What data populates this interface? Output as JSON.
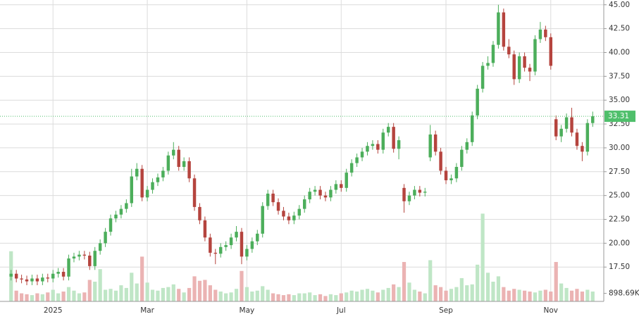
{
  "chart_data": {
    "type": "candlestick",
    "categories": [
      null,
      null,
      null,
      null,
      null,
      null,
      null,
      null,
      "2025",
      null,
      null,
      null,
      null,
      null,
      null,
      null,
      null,
      null,
      null,
      null,
      null,
      null,
      null,
      null,
      null,
      null,
      "Mar",
      null,
      null,
      null,
      null,
      null,
      null,
      null,
      null,
      null,
      null,
      null,
      null,
      null,
      null,
      null,
      null,
      null,
      null,
      "May",
      null,
      null,
      null,
      null,
      null,
      null,
      null,
      null,
      null,
      null,
      null,
      null,
      null,
      null,
      null,
      null,
      null,
      "Jul",
      null,
      null,
      null,
      null,
      null,
      null,
      null,
      null,
      null,
      null,
      null,
      null,
      null,
      null,
      null,
      null,
      null,
      null,
      null,
      "Sep",
      null,
      null,
      null,
      null,
      null,
      null,
      null,
      null,
      null,
      null,
      null,
      null,
      null,
      null,
      null,
      null,
      null,
      null,
      null,
      "Nov",
      null,
      null,
      null,
      null,
      null,
      null,
      null,
      null
    ],
    "open": [
      16.5,
      16.8,
      16.3,
      16.2,
      16.0,
      16.3,
      16.0,
      16.4,
      16.3,
      16.8,
      17.0,
      16.5,
      18.4,
      18.6,
      18.8,
      18.7,
      17.6,
      19.2,
      20.0,
      21.2,
      22.6,
      23.0,
      23.6,
      24.2,
      27.0,
      27.8,
      24.8,
      25.6,
      26.4,
      26.9,
      27.6,
      29.2,
      29.8,
      28.0,
      28.6,
      26.8,
      23.8,
      22.4,
      20.6,
      19.0,
      18.9,
      19.6,
      19.8,
      20.6,
      21.2,
      18.6,
      19.4,
      20.2,
      21.0,
      23.9,
      25.2,
      24.3,
      23.4,
      22.8,
      22.4,
      22.9,
      23.6,
      24.6,
      25.4,
      25.6,
      25.0,
      24.8,
      25.6,
      26.2,
      25.8,
      27.4,
      28.4,
      29.0,
      29.6,
      30.2,
      30.4,
      29.8,
      31.6,
      32.2,
      29.9,
      25.8,
      24.4,
      25.0,
      25.6,
      25.3,
      29.0,
      31.4,
      29.6,
      27.6,
      26.6,
      26.8,
      28.0,
      29.8,
      30.6,
      33.4,
      36.2,
      38.6,
      38.9,
      40.8,
      44.2,
      40.6,
      39.8,
      37.2,
      39.6,
      38.4,
      38.0,
      41.4,
      42.4,
      41.6,
      33.0,
      31.2,
      32.0,
      33.2,
      31.6,
      30.2,
      29.6,
      32.6
    ],
    "high": [
      17.2,
      17.2,
      16.7,
      16.6,
      16.7,
      16.7,
      16.8,
      16.8,
      17.2,
      17.4,
      17.4,
      18.8,
      19.0,
      19.2,
      19.2,
      19.1,
      19.6,
      20.4,
      21.6,
      23.0,
      23.4,
      24.0,
      24.6,
      27.8,
      28.4,
      28.2,
      26.0,
      26.8,
      27.3,
      28.0,
      29.6,
      30.6,
      30.2,
      29.0,
      29.0,
      27.2,
      24.2,
      22.8,
      21.0,
      19.4,
      20.0,
      20.2,
      21.0,
      21.8,
      21.6,
      19.8,
      20.6,
      21.4,
      24.3,
      25.6,
      25.6,
      24.7,
      23.8,
      23.2,
      23.3,
      24.0,
      25.0,
      25.8,
      26.0,
      26.0,
      25.4,
      26.0,
      26.6,
      26.6,
      27.8,
      28.8,
      29.4,
      30.0,
      30.6,
      30.8,
      30.8,
      32.0,
      32.6,
      32.6,
      31.2,
      26.2,
      25.4,
      26.0,
      26.0,
      25.8,
      32.4,
      31.8,
      30.0,
      28.0,
      27.2,
      28.4,
      30.2,
      31.0,
      33.8,
      36.6,
      39.0,
      39.6,
      41.2,
      45.0,
      44.6,
      41.4,
      40.2,
      40.0,
      40.0,
      38.8,
      41.8,
      43.2,
      42.8,
      42.0,
      33.4,
      32.4,
      33.6,
      34.2,
      32.0,
      30.6,
      33.0,
      33.8
    ],
    "low": [
      16.1,
      15.9,
      15.8,
      15.6,
      15.6,
      15.6,
      15.6,
      15.9,
      15.9,
      16.4,
      16.1,
      16.1,
      18.0,
      18.2,
      18.3,
      17.2,
      17.2,
      18.8,
      19.6,
      20.8,
      22.2,
      22.6,
      23.2,
      23.8,
      26.6,
      24.4,
      24.4,
      25.2,
      26.0,
      26.5,
      27.2,
      28.8,
      27.6,
      27.6,
      26.4,
      23.4,
      22.0,
      20.2,
      18.6,
      17.8,
      18.5,
      19.2,
      19.4,
      20.2,
      17.8,
      18.2,
      19.0,
      19.8,
      20.6,
      23.5,
      23.9,
      23.0,
      22.4,
      22.0,
      22.0,
      22.5,
      23.2,
      24.2,
      25.0,
      24.6,
      24.4,
      24.4,
      25.2,
      25.4,
      25.4,
      27.0,
      28.0,
      28.6,
      29.2,
      29.8,
      29.4,
      29.4,
      31.2,
      29.5,
      28.8,
      23.2,
      24.0,
      24.6,
      24.9,
      24.9,
      28.6,
      29.2,
      27.2,
      26.2,
      26.2,
      26.4,
      27.6,
      29.4,
      30.2,
      33.0,
      35.8,
      38.2,
      38.5,
      40.4,
      40.2,
      39.4,
      36.6,
      36.8,
      38.0,
      37.0,
      37.6,
      41.0,
      41.2,
      38.2,
      30.8,
      30.6,
      31.6,
      31.2,
      29.8,
      28.6,
      29.2,
      32.2
    ],
    "close": [
      16.8,
      16.3,
      16.2,
      16.0,
      16.3,
      16.0,
      16.4,
      16.3,
      16.8,
      17.0,
      16.5,
      18.4,
      18.6,
      18.8,
      18.7,
      17.6,
      19.2,
      20.0,
      21.2,
      22.6,
      23.0,
      23.6,
      24.2,
      27.0,
      27.8,
      24.8,
      25.6,
      26.4,
      26.9,
      27.6,
      29.2,
      29.8,
      28.0,
      28.6,
      26.8,
      23.8,
      22.4,
      20.6,
      19.0,
      18.9,
      19.6,
      19.8,
      20.6,
      21.2,
      18.6,
      19.4,
      20.2,
      21.0,
      23.9,
      25.2,
      24.3,
      23.4,
      22.8,
      22.4,
      22.9,
      23.6,
      24.6,
      25.4,
      25.6,
      25.0,
      24.8,
      25.6,
      26.2,
      25.8,
      27.4,
      28.4,
      29.0,
      29.6,
      30.2,
      30.4,
      29.8,
      31.6,
      32.2,
      29.9,
      30.8,
      24.4,
      25.0,
      25.6,
      25.3,
      25.4,
      31.4,
      29.6,
      27.6,
      26.6,
      26.8,
      28.0,
      29.8,
      30.6,
      33.4,
      36.2,
      38.6,
      38.9,
      40.8,
      44.2,
      40.6,
      39.8,
      37.2,
      39.6,
      38.4,
      38.0,
      41.4,
      42.4,
      41.6,
      38.6,
      31.2,
      32.0,
      33.2,
      31.6,
      30.2,
      29.6,
      32.6,
      33.31
    ],
    "volume": [
      5600000,
      1200000,
      900000,
      800000,
      700000,
      900000,
      800000,
      1000000,
      1300000,
      900000,
      1100000,
      1600000,
      1200000,
      900000,
      1000000,
      2400000,
      2200000,
      3600000,
      1300000,
      1400000,
      1200000,
      1800000,
      1500000,
      3200000,
      2000000,
      5000000,
      2100000,
      1300000,
      1200000,
      1500000,
      1600000,
      1900000,
      1400000,
      1000000,
      1500000,
      2800000,
      2300000,
      2400000,
      1800000,
      1300000,
      1100000,
      900000,
      1000000,
      1400000,
      3400000,
      1600000,
      1100000,
      1200000,
      1700000,
      1300000,
      900000,
      800000,
      700000,
      800000,
      700000,
      900000,
      900000,
      1000000,
      700000,
      800000,
      600000,
      800000,
      700000,
      900000,
      1000000,
      1200000,
      1100000,
      1300000,
      1400000,
      1200000,
      1000000,
      1300000,
      1500000,
      1900000,
      1600000,
      4400000,
      2100000,
      1300000,
      1100000,
      900000,
      4600000,
      1800000,
      1600000,
      1200000,
      1400000,
      1600000,
      2600000,
      1800000,
      1900000,
      4100000,
      9800000,
      3200000,
      2200000,
      2800000,
      1600000,
      1200000,
      1400000,
      1300000,
      1200000,
      1100000,
      1000000,
      1200000,
      1300000,
      1100000,
      4400000,
      2000000,
      1500000,
      1200000,
      1400000,
      1100000,
      1300000,
      1100000
    ],
    "ylim": [
      13.9,
      45.5
    ],
    "yticks": [
      {
        "value": 17.5,
        "label": "17.50"
      },
      {
        "value": 20,
        "label": "20.00"
      },
      {
        "value": 22.5,
        "label": "22.50"
      },
      {
        "value": 25,
        "label": "25.00"
      },
      {
        "value": 27.5,
        "label": "27.50"
      },
      {
        "value": 30,
        "label": "30.00"
      },
      {
        "value": 32.5,
        "label": "32.50"
      },
      {
        "value": 35,
        "label": "35.00"
      },
      {
        "value": 37.5,
        "label": "37.50"
      },
      {
        "value": 40,
        "label": "40.00"
      },
      {
        "value": 42.5,
        "label": "42.50"
      },
      {
        "value": 45,
        "label": "45.00"
      }
    ],
    "volume_lim": [
      0,
      11400000
    ],
    "volume_ticks": [
      {
        "value": 898690,
        "label": "898.69K"
      }
    ],
    "grid": true,
    "up_color": "#4cae5b",
    "down_color": "#b5443e",
    "volume_up_color": "#bfe6c6",
    "volume_down_color": "#ebb3b3",
    "last_price_color": "#4fbf6b"
  }
}
